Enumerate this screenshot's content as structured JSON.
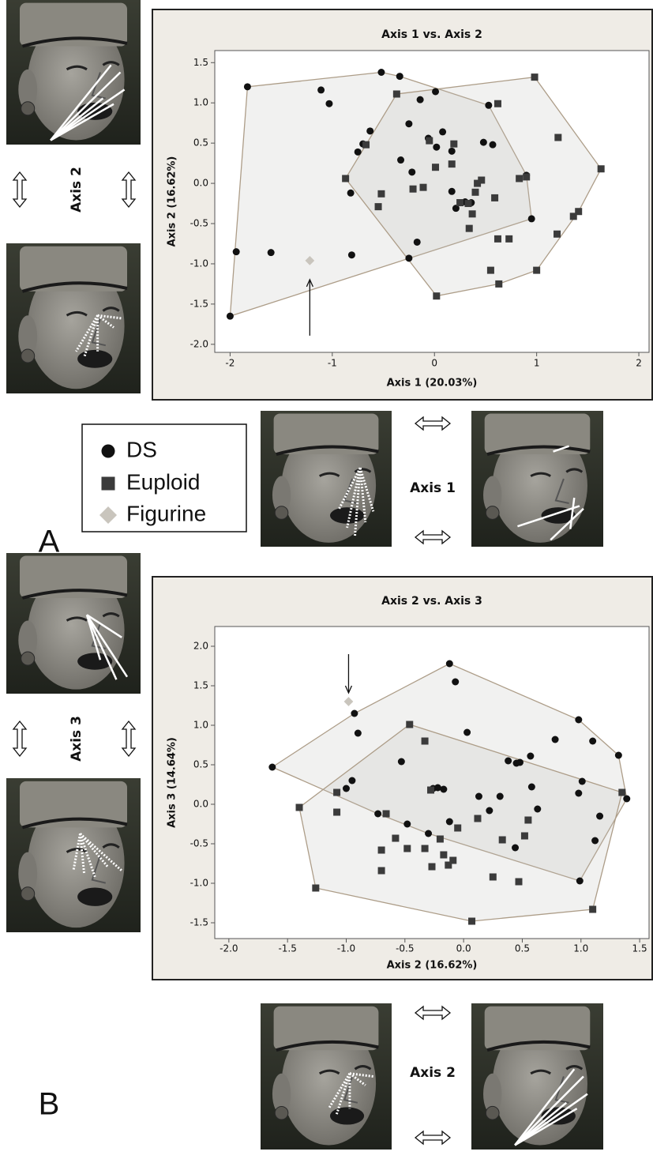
{
  "chart_data": [
    {
      "type": "scatter",
      "title": "Axis 1 vs. Axis 2",
      "x_label": "Axis 1 (20.03%)",
      "y_label": "Axis 2 (16.62%)",
      "xlim": [
        -2.15,
        2.1
      ],
      "ylim": [
        -2.1,
        1.65
      ],
      "xticks": [
        -2,
        -1,
        0,
        1,
        2
      ],
      "yticks": [
        1.5,
        {
          "value": 1,
          "label": "1.0"
        },
        0.5,
        {
          "value": 0,
          "label": "0.0"
        },
        -0.5,
        {
          "value": -1,
          "label": "-1.0"
        },
        -1.5,
        {
          "value": -2,
          "label": "-2.0"
        }
      ],
      "series": [
        {
          "name": "DS",
          "color": "#111111",
          "marker": "circle",
          "hull": true,
          "x": [
            -1.83,
            -1.11,
            -1.03,
            -0.52,
            -0.34,
            -1.94,
            -1.6,
            -0.81,
            -2.0,
            -0.75,
            -0.7,
            -0.63,
            -0.82,
            -0.25,
            -0.17,
            -0.14,
            0.01,
            -0.25,
            -0.33,
            -0.22,
            -0.06,
            0.02,
            0.08,
            0.17,
            0.17,
            0.21,
            0.3,
            0.36,
            0.48,
            0.57,
            0.53,
            0.9,
            0.95
          ],
          "values": [
            1.2,
            1.16,
            0.99,
            1.38,
            1.33,
            -0.85,
            -0.86,
            -0.89,
            -1.65,
            0.39,
            0.49,
            0.65,
            -0.12,
            -0.93,
            -0.73,
            1.04,
            1.14,
            0.74,
            0.29,
            0.14,
            0.56,
            0.45,
            0.64,
            0.4,
            -0.1,
            -0.31,
            -0.23,
            -0.24,
            0.51,
            0.48,
            0.97,
            0.1,
            -0.44
          ]
        },
        {
          "name": "Euploid",
          "color": "#3b3b3b",
          "marker": "square",
          "hull": true,
          "x": [
            -0.87,
            -0.67,
            -0.52,
            -0.55,
            -0.37,
            -0.21,
            -0.11,
            -0.05,
            0.01,
            0.17,
            0.19,
            0.25,
            0.33,
            0.37,
            0.4,
            0.46,
            0.42,
            0.59,
            0.83,
            0.9,
            0.62,
            0.98,
            1.21,
            1.63,
            1.41,
            1.36,
            1.2,
            1.0,
            0.62,
            0.73,
            0.55,
            0.63,
            0.34,
            0.02
          ],
          "values": [
            0.06,
            0.48,
            -0.13,
            -0.29,
            1.11,
            -0.07,
            -0.05,
            0.53,
            0.2,
            0.24,
            0.49,
            -0.24,
            -0.25,
            -0.38,
            -0.11,
            0.04,
            0.0,
            -0.18,
            0.06,
            0.08,
            0.99,
            1.32,
            0.57,
            0.18,
            -0.35,
            -0.41,
            -0.63,
            -1.08,
            -0.69,
            -0.69,
            -1.08,
            -1.25,
            -0.56,
            -1.4
          ]
        },
        {
          "name": "Figurine",
          "color": "#c9c5bd",
          "marker": "diamond",
          "hull": false,
          "x": [
            -1.22
          ],
          "values": [
            -0.96
          ]
        }
      ]
    },
    {
      "type": "scatter",
      "title": "Axis 2 vs. Axis 3",
      "x_label": "Axis 2 (16.62%)",
      "y_label": "Axis 3 (14.64%)",
      "xlim": [
        -2.12,
        1.58
      ],
      "ylim": [
        -1.7,
        2.25
      ],
      "xticks": [
        {
          "value": -2,
          "label": "-2.0"
        },
        -1.5,
        {
          "value": -1,
          "label": "-1.0"
        },
        -0.5,
        {
          "value": 0,
          "label": "0.0"
        },
        0.5,
        {
          "value": 1,
          "label": "1.0"
        },
        1.5
      ],
      "yticks": [
        {
          "value": 2,
          "label": "2.0"
        },
        1.5,
        {
          "value": 1,
          "label": "1.0"
        },
        0.5,
        {
          "value": 0,
          "label": "0.0"
        },
        -0.5,
        {
          "value": -1,
          "label": "-1.0"
        },
        -1.5
      ],
      "series": [
        {
          "name": "DS",
          "color": "#111111",
          "marker": "circle",
          "hull": true,
          "x": [
            -1.63,
            -0.93,
            -0.9,
            -0.12,
            -0.07,
            0.98,
            1.1,
            1.32,
            1.39,
            1.16,
            1.12,
            0.99,
            -0.95,
            -1.0,
            -0.73,
            -0.53,
            -0.48,
            -0.3,
            -0.26,
            -0.22,
            -0.17,
            -0.12,
            0.03,
            0.13,
            0.22,
            0.31,
            0.38,
            0.45,
            0.48,
            0.57,
            0.63,
            0.78,
            0.58,
            0.44,
            0.98,
            1.01
          ],
          "values": [
            0.47,
            1.15,
            0.9,
            1.78,
            1.55,
            1.07,
            0.8,
            0.62,
            0.07,
            -0.15,
            -0.46,
            -0.97,
            0.3,
            0.2,
            -0.12,
            0.54,
            -0.25,
            -0.37,
            0.2,
            0.21,
            0.19,
            -0.22,
            0.91,
            0.1,
            -0.08,
            0.1,
            0.55,
            0.52,
            0.53,
            0.61,
            -0.06,
            0.82,
            0.22,
            -0.55,
            0.14,
            0.29
          ]
        },
        {
          "name": "Euploid",
          "color": "#3b3b3b",
          "marker": "square",
          "hull": true,
          "x": [
            -1.4,
            -1.26,
            -1.08,
            -1.08,
            -0.66,
            -0.7,
            -0.7,
            -0.58,
            -0.48,
            -0.46,
            -0.33,
            -0.33,
            -0.27,
            -0.28,
            -0.2,
            -0.17,
            -0.09,
            -0.13,
            -0.05,
            0.07,
            0.12,
            0.25,
            0.33,
            0.47,
            0.52,
            0.55,
            1.1,
            1.35
          ],
          "values": [
            -0.04,
            -1.06,
            0.15,
            -0.1,
            -0.12,
            -0.58,
            -0.84,
            -0.43,
            -0.56,
            1.01,
            0.8,
            -0.56,
            -0.79,
            0.18,
            -0.44,
            -0.64,
            -0.71,
            -0.77,
            -0.3,
            -1.48,
            -0.18,
            -0.92,
            -0.45,
            -0.98,
            -0.4,
            -0.2,
            -1.33,
            0.15
          ]
        },
        {
          "name": "Figurine",
          "color": "#c9c5bd",
          "marker": "diamond",
          "hull": false,
          "x": [
            -0.98
          ],
          "values": [
            1.3
          ]
        }
      ]
    }
  ],
  "panels": [
    {
      "label": "A",
      "axis_left": "Axis 2",
      "axis_bottom": "Axis 1"
    },
    {
      "label": "B",
      "axis_left": "Axis 3",
      "axis_bottom": "Axis 2"
    }
  ]
}
